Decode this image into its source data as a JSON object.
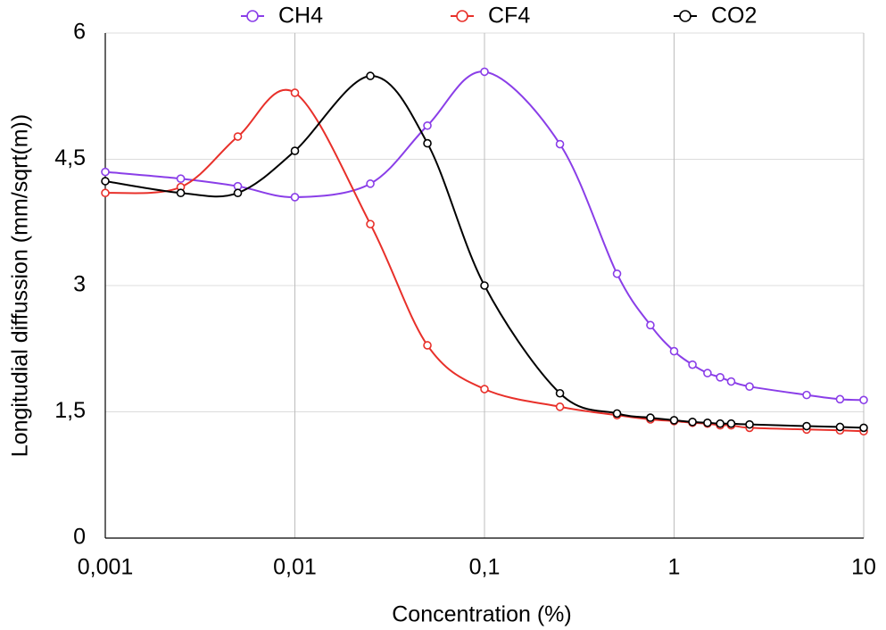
{
  "chart_data": {
    "type": "line",
    "x_label": "Concentration (%)",
    "y_label": "Longitudial diffussion (mm/sqrt(m))",
    "x_scale": "log",
    "grid": true,
    "legend": "top",
    "x": [
      0.001,
      0.0025,
      0.005,
      0.01,
      0.025,
      0.05,
      0.1,
      0.25,
      0.5,
      0.75,
      1,
      1.25,
      1.5,
      1.75,
      2,
      2.5,
      5,
      7.5,
      10
    ],
    "series": [
      {
        "name": "CH4",
        "color": "#8a3ee8",
        "values": [
          4.35,
          4.27,
          4.18,
          4.05,
          4.21,
          4.9,
          5.54,
          4.68,
          3.14,
          2.53,
          2.22,
          2.06,
          1.96,
          1.91,
          1.86,
          1.8,
          1.7,
          1.65,
          1.64
        ]
      },
      {
        "name": "CF4",
        "color": "#e8302a",
        "values": [
          4.1,
          4.17,
          4.77,
          5.29,
          3.73,
          2.29,
          1.77,
          1.56,
          1.46,
          1.41,
          1.39,
          1.37,
          1.36,
          1.34,
          1.34,
          1.31,
          1.29,
          1.28,
          1.27
        ]
      },
      {
        "name": "CO2",
        "color": "#000000",
        "values": [
          4.24,
          4.1,
          4.1,
          4.6,
          5.49,
          4.69,
          3.0,
          1.72,
          1.48,
          1.43,
          1.4,
          1.38,
          1.37,
          1.36,
          1.36,
          1.35,
          1.33,
          1.32,
          1.31
        ]
      }
    ],
    "xlim": [
      0.001,
      10
    ],
    "xticks": [
      {
        "value": 0.001,
        "label": "0,001"
      },
      {
        "value": 0.01,
        "label": "0,01"
      },
      {
        "value": 0.1,
        "label": "0,1"
      },
      1,
      10
    ],
    "ylim": [
      0,
      6
    ],
    "yticks": [
      0,
      {
        "value": 1.5,
        "label": "1,5"
      },
      3,
      {
        "value": 4.5,
        "label": "4,5"
      },
      6
    ]
  }
}
